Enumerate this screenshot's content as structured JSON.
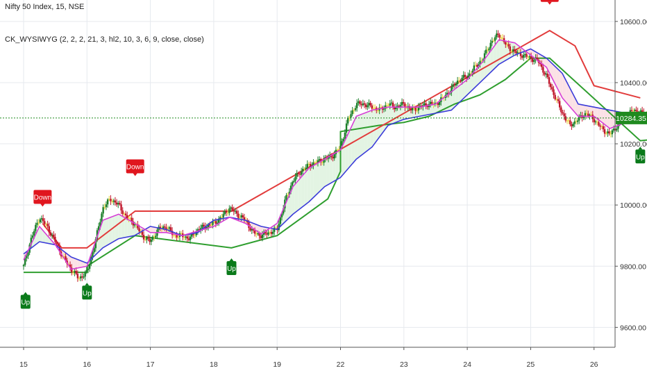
{
  "header": {
    "symbol_line": "Nifty 50 Index, 15, NSE",
    "indicator_line": "CK_WYSIWYG (2, 2, 2, 21, 3, hl2, 10, 3, 6, 9, close, close)"
  },
  "colors": {
    "bull_candle": "#1b7f2a",
    "bear_candle": "#c0162b",
    "neutral_candle": "#e8d23a",
    "ma_fast": "#d63fd6",
    "ma_slow": "#3b3bd9",
    "stop_up": "#2e9e2e",
    "stop_down": "#e23b3b",
    "fill_up": "#e3f4e3",
    "fill_down": "#fbe1e6",
    "flag_up": "#0a7a1a",
    "flag_down": "#e0161e",
    "grid": "#e6e9ee",
    "last_price_line": "#1f8a1f"
  },
  "chart_data": {
    "type": "line",
    "title": "Nifty 50 Index, 15, NSE",
    "xlabel": "",
    "ylabel": "",
    "ylim": [
      9535,
      10670
    ],
    "x_ticks": [
      "15",
      "16",
      "17",
      "18",
      "19",
      "22",
      "23",
      "24",
      "25",
      "26"
    ],
    "y_ticks": [
      "10600.00",
      "10400.00",
      "10200.00",
      "10000.00",
      "9800.00",
      "9600.00"
    ],
    "y_tick_values": [
      10600,
      10400,
      10200,
      10000,
      9800,
      9600
    ],
    "last_price": "10284.35",
    "last_price_value": 10284.35,
    "grid": true,
    "signals": [
      {
        "label": "Up",
        "session": 0.03,
        "value": 9720
      },
      {
        "label": "Down",
        "session": 0.3,
        "value": 9990
      },
      {
        "label": "Up",
        "session": 1.0,
        "value": 9750
      },
      {
        "label": "Down",
        "session": 1.76,
        "value": 10090
      },
      {
        "label": "Up",
        "session": 3.28,
        "value": 9830
      },
      {
        "label": "Down",
        "session": 8.3,
        "value": 10650
      },
      {
        "label": "Up",
        "session": 9.73,
        "value": 10195
      }
    ],
    "series": [
      {
        "name": "",
        "kind": "close",
        "session": [
          0.0,
          0.12,
          0.25,
          0.37,
          0.5,
          0.62,
          0.75,
          0.87,
          1.0,
          1.12,
          1.25,
          1.37,
          1.5,
          1.62,
          1.75,
          1.87,
          2.0,
          2.12,
          2.25,
          2.37,
          2.5,
          2.62,
          2.75,
          2.87,
          3.0,
          3.12,
          3.25,
          3.37,
          3.5,
          3.62,
          3.75,
          3.87,
          4.0,
          4.12,
          4.25,
          4.37,
          4.5,
          4.62,
          4.75,
          4.87,
          5.0,
          5.12,
          5.25,
          5.37,
          5.5,
          5.62,
          5.75,
          5.87,
          6.0,
          6.12,
          6.25,
          6.37,
          6.5,
          6.62,
          6.75,
          6.87,
          7.0,
          7.12,
          7.25,
          7.37,
          7.5,
          7.62,
          7.75,
          7.87,
          8.0,
          8.12,
          8.25,
          8.37,
          8.5,
          8.62,
          8.75,
          8.87,
          9.0,
          9.12,
          9.25,
          9.37,
          9.5,
          9.62,
          9.75,
          9.85,
          9.95
        ],
        "values": [
          9800,
          9890,
          9960,
          9930,
          9880,
          9830,
          9790,
          9760,
          9780,
          9870,
          9990,
          10020,
          10000,
          9960,
          9940,
          9900,
          9880,
          9920,
          9930,
          9900,
          9900,
          9890,
          9920,
          9930,
          9940,
          9960,
          9990,
          9970,
          9950,
          9910,
          9900,
          9910,
          9920,
          10010,
          10080,
          10110,
          10130,
          10140,
          10150,
          10160,
          10190,
          10280,
          10330,
          10330,
          10320,
          10310,
          10330,
          10320,
          10330,
          10310,
          10320,
          10330,
          10330,
          10350,
          10380,
          10410,
          10420,
          10450,
          10480,
          10530,
          10560,
          10520,
          10500,
          10490,
          10480,
          10470,
          10420,
          10360,
          10300,
          10260,
          10280,
          10300,
          10280,
          10250,
          10230,
          10260,
          10290,
          10310,
          10300,
          10295,
          10284
        ]
      },
      {
        "name": "",
        "kind": "ma_fast",
        "session": [
          0.0,
          0.25,
          0.5,
          0.75,
          1.0,
          1.25,
          1.5,
          1.75,
          2.0,
          2.25,
          2.5,
          2.75,
          3.0,
          3.25,
          3.5,
          3.75,
          4.0,
          4.25,
          4.5,
          4.75,
          5.0,
          5.25,
          5.5,
          5.75,
          6.0,
          6.25,
          6.5,
          6.75,
          7.0,
          7.25,
          7.5,
          7.75,
          8.0,
          8.25,
          8.5,
          8.75,
          9.0,
          9.25,
          9.5,
          9.75,
          9.95
        ],
        "values": [
          9820,
          9930,
          9870,
          9790,
          9800,
          9950,
          9970,
          9940,
          9910,
          9910,
          9900,
          9915,
          9930,
          9960,
          9940,
          9905,
          9940,
          10060,
          10120,
          10150,
          10180,
          10290,
          10310,
          10320,
          10320,
          10320,
          10330,
          10370,
          10410,
          10470,
          10540,
          10530,
          10490,
          10450,
          10350,
          10290,
          10290,
          10250,
          10270,
          10300,
          10290
        ]
      },
      {
        "name": "",
        "kind": "ma_slow",
        "session": [
          0.0,
          0.25,
          0.5,
          0.75,
          1.0,
          1.25,
          1.5,
          1.75,
          2.0,
          2.25,
          2.5,
          2.75,
          3.0,
          3.25,
          3.5,
          3.75,
          4.0,
          4.25,
          4.5,
          4.75,
          5.0,
          5.25,
          5.5,
          5.75,
          6.0,
          6.25,
          6.5,
          6.75,
          7.0,
          7.25,
          7.5,
          7.75,
          8.0,
          8.25,
          8.5,
          8.75,
          9.0,
          9.25,
          9.5,
          9.75,
          9.95
        ],
        "values": [
          9840,
          9880,
          9870,
          9830,
          9810,
          9860,
          9890,
          9900,
          9930,
          9920,
          9900,
          9910,
          9950,
          9960,
          9950,
          9930,
          9920,
          9970,
          10010,
          10060,
          10090,
          10150,
          10190,
          10260,
          10280,
          10290,
          10300,
          10310,
          10360,
          10410,
          10460,
          10490,
          10510,
          10480,
          10430,
          10330,
          10320,
          10310,
          10300,
          10300,
          10295
        ]
      },
      {
        "name": "",
        "kind": "stop_up",
        "session": [
          0.0,
          0.3,
          0.3,
          1.0,
          1.0,
          1.76,
          3.28,
          3.28,
          4.0,
          4.4,
          4.8,
          5.0,
          5.0,
          5.6,
          6.0,
          6.4,
          6.8,
          7.2,
          7.6,
          8.0,
          8.3,
          9.73,
          9.95
        ],
        "values": [
          9780,
          9780,
          9780,
          9780,
          9800,
          9900,
          9860,
          9860,
          9900,
          9960,
          10020,
          10110,
          10240,
          10260,
          10270,
          10290,
          10330,
          10360,
          10410,
          10480,
          10480,
          10210,
          10215
        ]
      },
      {
        "name": "",
        "kind": "stop_down",
        "session": [
          0.3,
          0.6,
          1.0,
          1.76,
          2.5,
          3.28,
          8.3,
          8.7,
          9.0,
          9.73
        ],
        "values": [
          9940,
          9860,
          9860,
          9980,
          9980,
          9980,
          10570,
          10520,
          10390,
          10350
        ]
      }
    ]
  }
}
